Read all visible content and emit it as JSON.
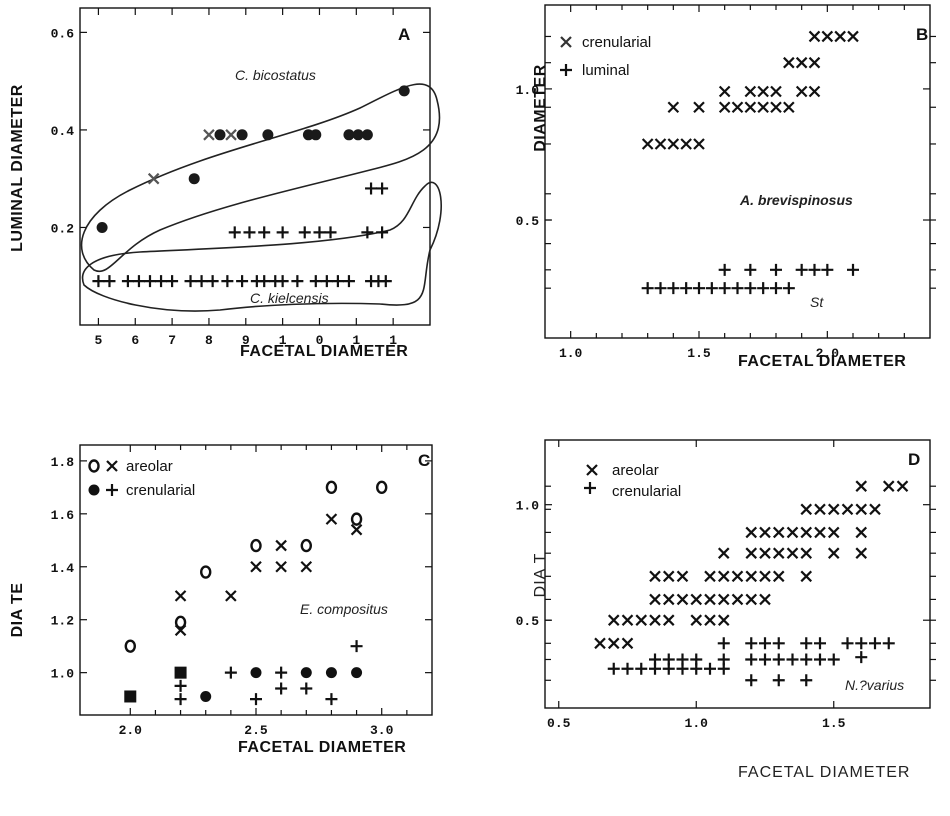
{
  "chart_data": [
    {
      "panel": "A",
      "type": "scatter",
      "ylabel": "LUMINAL DIAMETER",
      "xlabel": "FACETAL DIAMETER",
      "x_tick_labels": [
        "5",
        "6",
        "7",
        "8",
        "9",
        "1",
        "0",
        "1",
        "1"
      ],
      "y_tick_labels": [
        "0.6",
        "0.4",
        "0.2"
      ],
      "annotations": [
        "C. bicostatus",
        "C. kielcensis"
      ],
      "series": [
        {
          "symbol": "x",
          "color": "#555555",
          "points": [
            [
              8.0,
              0.39
            ],
            [
              8.6,
              0.39
            ],
            [
              6.5,
              0.3
            ]
          ]
        },
        {
          "symbol": "dot",
          "color": "#1a1a1a",
          "points": [
            [
              8.3,
              0.39
            ],
            [
              8.9,
              0.39
            ],
            [
              9.6,
              0.39
            ],
            [
              10.7,
              0.39
            ],
            [
              10.9,
              0.39
            ],
            [
              11.8,
              0.39
            ],
            [
              12.05,
              0.39
            ],
            [
              12.3,
              0.39
            ],
            [
              13.3,
              0.48
            ],
            [
              7.6,
              0.3
            ],
            [
              5.1,
              0.2
            ]
          ]
        },
        {
          "symbol": "+",
          "color": "#111111",
          "points": [
            [
              12.4,
              0.28
            ],
            [
              12.7,
              0.28
            ],
            [
              8.7,
              0.19
            ],
            [
              9.1,
              0.19
            ],
            [
              9.5,
              0.19
            ],
            [
              10.0,
              0.19
            ],
            [
              10.6,
              0.19
            ],
            [
              11.0,
              0.19
            ],
            [
              11.3,
              0.19
            ],
            [
              12.3,
              0.19
            ],
            [
              12.7,
              0.19
            ],
            [
              5.0,
              0.09
            ],
            [
              5.3,
              0.09
            ],
            [
              5.8,
              0.09
            ],
            [
              6.1,
              0.09
            ],
            [
              6.4,
              0.09
            ],
            [
              6.7,
              0.09
            ],
            [
              7.0,
              0.09
            ],
            [
              7.5,
              0.09
            ],
            [
              7.8,
              0.09
            ],
            [
              8.1,
              0.09
            ],
            [
              8.5,
              0.09
            ],
            [
              8.9,
              0.09
            ],
            [
              9.3,
              0.09
            ],
            [
              9.5,
              0.09
            ],
            [
              9.8,
              0.09
            ],
            [
              10.0,
              0.09
            ],
            [
              10.4,
              0.09
            ],
            [
              10.9,
              0.09
            ],
            [
              11.2,
              0.09
            ],
            [
              11.5,
              0.09
            ],
            [
              11.8,
              0.09
            ],
            [
              12.4,
              0.09
            ],
            [
              12.6,
              0.09
            ],
            [
              12.8,
              0.09
            ]
          ]
        }
      ]
    },
    {
      "panel": "B",
      "type": "scatter",
      "ylabel": "DIAMETER",
      "xlabel": "FACETAL DIAMETER",
      "x_tick_labels": [
        "1.0",
        "1.5",
        "2.0"
      ],
      "y_tick_labels": [
        "1.0",
        "0.5"
      ],
      "legend": [
        "crenularial",
        "luminal"
      ],
      "annotations": [
        "A. brevispinosus",
        "St"
      ],
      "series": [
        {
          "name": "crenularial",
          "symbol": "x",
          "points": [
            [
              1.95,
              1.2
            ],
            [
              2.0,
              1.2
            ],
            [
              2.05,
              1.2
            ],
            [
              2.1,
              1.2
            ],
            [
              1.85,
              1.1
            ],
            [
              1.9,
              1.1
            ],
            [
              1.95,
              1.1
            ],
            [
              1.6,
              0.99
            ],
            [
              1.7,
              0.99
            ],
            [
              1.75,
              0.99
            ],
            [
              1.8,
              0.99
            ],
            [
              1.9,
              0.99
            ],
            [
              1.95,
              0.99
            ],
            [
              1.4,
              0.93
            ],
            [
              1.5,
              0.93
            ],
            [
              1.6,
              0.93
            ],
            [
              1.65,
              0.93
            ],
            [
              1.7,
              0.93
            ],
            [
              1.75,
              0.93
            ],
            [
              1.8,
              0.93
            ],
            [
              1.85,
              0.93
            ],
            [
              1.3,
              0.79
            ],
            [
              1.35,
              0.79
            ],
            [
              1.4,
              0.79
            ],
            [
              1.45,
              0.79
            ],
            [
              1.5,
              0.79
            ]
          ]
        },
        {
          "name": "luminal",
          "symbol": "+",
          "points": [
            [
              1.6,
              0.31
            ],
            [
              1.7,
              0.31
            ],
            [
              1.8,
              0.31
            ],
            [
              1.9,
              0.31
            ],
            [
              1.95,
              0.31
            ],
            [
              2.0,
              0.31
            ],
            [
              2.1,
              0.31
            ],
            [
              1.3,
              0.24
            ],
            [
              1.35,
              0.24
            ],
            [
              1.4,
              0.24
            ],
            [
              1.45,
              0.24
            ],
            [
              1.5,
              0.24
            ],
            [
              1.55,
              0.24
            ],
            [
              1.6,
              0.24
            ],
            [
              1.65,
              0.24
            ],
            [
              1.7,
              0.24
            ],
            [
              1.75,
              0.24
            ],
            [
              1.8,
              0.24
            ],
            [
              1.85,
              0.24
            ]
          ]
        }
      ]
    },
    {
      "panel": "C",
      "type": "scatter",
      "ylabel": "DIA TE",
      "xlabel": "FACETAL DIAMETER",
      "x_tick_labels": [
        "2.0",
        "2.5",
        "3.0"
      ],
      "y_tick_labels": [
        "1.8",
        "1.6",
        "1.4",
        "1.2",
        "1.0"
      ],
      "legend": [
        "areolar",
        "crenularial"
      ],
      "annotations": [
        "E. compositus"
      ],
      "series": [
        {
          "name": "areolar",
          "symbol": "o",
          "points": [
            [
              2.0,
              1.1
            ],
            [
              2.2,
              1.19
            ],
            [
              2.3,
              1.38
            ],
            [
              2.5,
              1.48
            ],
            [
              2.7,
              1.48
            ],
            [
              2.8,
              1.7
            ],
            [
              2.9,
              1.58
            ],
            [
              3.0,
              1.7
            ]
          ]
        },
        {
          "name": "areolar",
          "symbol": "x",
          "points": [
            [
              2.2,
              1.29
            ],
            [
              2.2,
              1.16
            ],
            [
              2.4,
              1.29
            ],
            [
              2.5,
              1.4
            ],
            [
              2.6,
              1.48
            ],
            [
              2.6,
              1.4
            ],
            [
              2.7,
              1.4
            ],
            [
              2.8,
              1.58
            ],
            [
              2.9,
              1.54
            ]
          ]
        },
        {
          "name": "crenularial",
          "symbol": "dot",
          "points": [
            [
              2.3,
              0.91
            ],
            [
              2.5,
              1.0
            ],
            [
              2.7,
              1.0
            ],
            [
              2.8,
              1.0
            ],
            [
              2.9,
              1.0
            ]
          ]
        },
        {
          "name": "crenularial",
          "symbol": "+",
          "points": [
            [
              2.2,
              0.95
            ],
            [
              2.2,
              0.9
            ],
            [
              2.4,
              1.0
            ],
            [
              2.5,
              0.9
            ],
            [
              2.6,
              1.0
            ],
            [
              2.6,
              0.94
            ],
            [
              2.7,
              0.94
            ],
            [
              2.8,
              0.9
            ],
            [
              2.9,
              1.1
            ]
          ]
        },
        {
          "symbol": "square",
          "points": [
            [
              2.0,
              0.91
            ],
            [
              2.2,
              1.0
            ]
          ]
        }
      ]
    },
    {
      "panel": "D",
      "type": "scatter",
      "ylabel": "DIA T",
      "xlabel": "FACETAL DIAMETER",
      "x_tick_labels": [
        "0.5",
        "1.0",
        "1.5"
      ],
      "y_tick_labels": [
        "1.0",
        "0.5"
      ],
      "legend": [
        "areolar",
        "crenularial"
      ],
      "annotations": [
        "N.?varius"
      ],
      "series": [
        {
          "name": "areolar",
          "symbol": "x",
          "points": [
            [
              1.6,
              1.08
            ],
            [
              1.7,
              1.08
            ],
            [
              1.75,
              1.08
            ],
            [
              1.4,
              0.98
            ],
            [
              1.45,
              0.98
            ],
            [
              1.5,
              0.98
            ],
            [
              1.55,
              0.98
            ],
            [
              1.6,
              0.98
            ],
            [
              1.65,
              0.98
            ],
            [
              1.2,
              0.88
            ],
            [
              1.25,
              0.88
            ],
            [
              1.3,
              0.88
            ],
            [
              1.35,
              0.88
            ],
            [
              1.4,
              0.88
            ],
            [
              1.45,
              0.88
            ],
            [
              1.5,
              0.88
            ],
            [
              1.6,
              0.88
            ],
            [
              1.1,
              0.79
            ],
            [
              1.2,
              0.79
            ],
            [
              1.25,
              0.79
            ],
            [
              1.3,
              0.79
            ],
            [
              1.35,
              0.79
            ],
            [
              1.4,
              0.79
            ],
            [
              1.5,
              0.79
            ],
            [
              1.6,
              0.79
            ],
            [
              0.85,
              0.69
            ],
            [
              0.9,
              0.69
            ],
            [
              0.95,
              0.69
            ],
            [
              1.05,
              0.69
            ],
            [
              1.1,
              0.69
            ],
            [
              1.15,
              0.69
            ],
            [
              1.2,
              0.69
            ],
            [
              1.25,
              0.69
            ],
            [
              1.3,
              0.69
            ],
            [
              1.4,
              0.69
            ],
            [
              0.85,
              0.59
            ],
            [
              0.9,
              0.59
            ],
            [
              0.95,
              0.59
            ],
            [
              1.0,
              0.59
            ],
            [
              1.05,
              0.59
            ],
            [
              1.1,
              0.59
            ],
            [
              1.15,
              0.59
            ],
            [
              1.2,
              0.59
            ],
            [
              1.25,
              0.59
            ],
            [
              0.7,
              0.5
            ],
            [
              0.75,
              0.5
            ],
            [
              0.8,
              0.5
            ],
            [
              0.85,
              0.5
            ],
            [
              0.9,
              0.5
            ],
            [
              1.0,
              0.5
            ],
            [
              1.05,
              0.5
            ],
            [
              1.1,
              0.5
            ],
            [
              0.65,
              0.4
            ],
            [
              0.7,
              0.4
            ],
            [
              0.75,
              0.4
            ]
          ]
        },
        {
          "name": "crenularial",
          "symbol": "+",
          "points": [
            [
              1.1,
              0.4
            ],
            [
              1.2,
              0.4
            ],
            [
              1.25,
              0.4
            ],
            [
              1.3,
              0.4
            ],
            [
              1.4,
              0.4
            ],
            [
              1.45,
              0.4
            ],
            [
              1.55,
              0.4
            ],
            [
              1.6,
              0.4
            ],
            [
              1.65,
              0.4
            ],
            [
              1.7,
              0.4
            ],
            [
              0.85,
              0.33
            ],
            [
              0.9,
              0.33
            ],
            [
              0.95,
              0.33
            ],
            [
              1.0,
              0.33
            ],
            [
              1.1,
              0.33
            ],
            [
              1.2,
              0.33
            ],
            [
              1.25,
              0.33
            ],
            [
              1.3,
              0.33
            ],
            [
              1.35,
              0.33
            ],
            [
              1.4,
              0.33
            ],
            [
              1.45,
              0.33
            ],
            [
              1.5,
              0.33
            ],
            [
              1.6,
              0.34
            ],
            [
              0.7,
              0.29
            ],
            [
              0.75,
              0.29
            ],
            [
              0.8,
              0.29
            ],
            [
              0.85,
              0.29
            ],
            [
              0.9,
              0.29
            ],
            [
              0.95,
              0.29
            ],
            [
              1.0,
              0.29
            ],
            [
              1.05,
              0.29
            ],
            [
              1.1,
              0.29
            ],
            [
              1.2,
              0.24
            ],
            [
              1.3,
              0.24
            ],
            [
              1.4,
              0.24
            ]
          ]
        }
      ]
    }
  ]
}
